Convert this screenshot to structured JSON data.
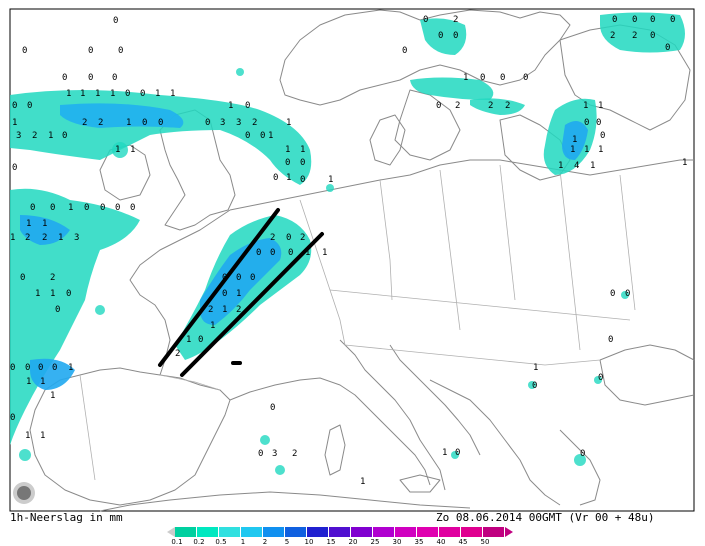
{
  "map": {
    "title_left": "1h-Neerslag in mm",
    "title_right": "Zo 08.06.2014 00GMT (Vr 00 + 48u)"
  },
  "legend": {
    "labels": [
      "0.1",
      "0.2",
      "0.5",
      "1",
      "2",
      "5",
      "10",
      "15",
      "20",
      "25",
      "30",
      "35",
      "40",
      "45",
      "50"
    ],
    "colors": [
      "#00d0a0",
      "#00e8c0",
      "#30e0e0",
      "#20c8f0",
      "#1090f0",
      "#1060e0",
      "#2020d0",
      "#5010d0",
      "#8000d0",
      "#b000d0",
      "#d000c0",
      "#e000b0",
      "#e000a0",
      "#e00090",
      "#c00080"
    ]
  },
  "precip_digits": [
    "0",
    "0",
    "2",
    "0",
    "0",
    "0",
    "0",
    "0",
    "0",
    "0",
    "0",
    "0",
    "0",
    "2",
    "2",
    "0",
    "0",
    "1",
    "0",
    "0",
    "0",
    "0",
    "0",
    "0",
    "1",
    "1",
    "1",
    "1",
    "0",
    "0",
    "1",
    "1",
    "1",
    "0",
    "0",
    "2",
    "2",
    "2",
    "1",
    "1",
    "0",
    "0",
    "1",
    "3",
    "2",
    "1",
    "0",
    "0",
    "3",
    "3",
    "2",
    "1",
    "1",
    "0",
    "0",
    "1",
    "1",
    "1",
    "1",
    "4",
    "1",
    "2",
    "2",
    "1",
    "0",
    "0",
    "0",
    "1",
    "1",
    "0",
    "0",
    "1",
    "1",
    "0",
    "0",
    "0",
    "1",
    "1",
    "0",
    "0",
    "1",
    "1",
    "0",
    "0",
    "1",
    "0",
    "0",
    "0",
    "0",
    "1",
    "1",
    "1",
    "2",
    "2",
    "1",
    "3",
    "2",
    "0",
    "2",
    "0",
    "0",
    "0",
    "1",
    "1",
    "0",
    "2",
    "1",
    "1",
    "0",
    "0",
    "0",
    "0",
    "0",
    "0",
    "1",
    "2",
    "1",
    "2",
    "1",
    "1",
    "0",
    "2",
    "0",
    "0",
    "0",
    "0",
    "0",
    "0",
    "1",
    "1",
    "1",
    "1",
    "0",
    "1",
    "1",
    "0",
    "0",
    "3",
    "2",
    "1",
    "1",
    "0",
    "1",
    "0",
    "0",
    "0",
    "0",
    "0",
    "0",
    "0"
  ]
}
